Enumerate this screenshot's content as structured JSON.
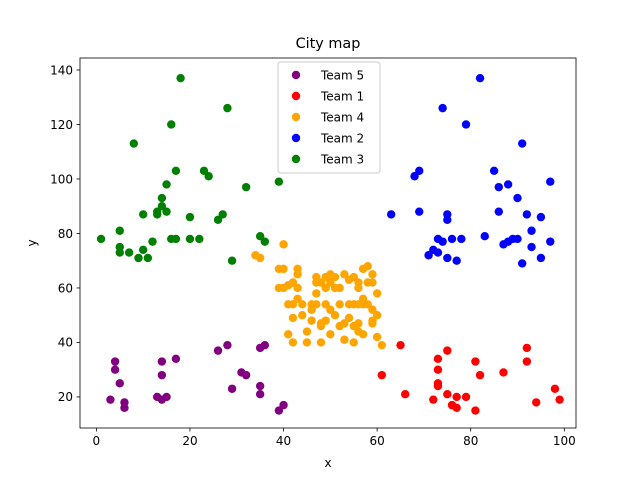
{
  "chart_data": {
    "type": "scatter",
    "title": "City map",
    "xlabel": "x",
    "ylabel": "y",
    "xlim": [
      -3.5,
      102.5
    ],
    "ylim": [
      8.6,
      144.4
    ],
    "xticks": [
      0,
      20,
      40,
      60,
      80,
      100
    ],
    "yticks": [
      20,
      40,
      60,
      80,
      100,
      120,
      140
    ],
    "grid": false,
    "legend_position": "top-center",
    "series": [
      {
        "name": "Team 5",
        "color": "#800080",
        "points": [
          [
            3,
            19
          ],
          [
            4,
            33
          ],
          [
            4,
            30
          ],
          [
            5,
            25
          ],
          [
            6,
            18
          ],
          [
            6,
            16
          ],
          [
            13,
            20
          ],
          [
            14,
            19
          ],
          [
            14,
            33
          ],
          [
            14,
            28
          ],
          [
            15,
            20
          ],
          [
            17,
            34
          ],
          [
            26,
            37
          ],
          [
            28,
            39
          ],
          [
            29,
            23
          ],
          [
            31,
            29
          ],
          [
            32,
            28
          ],
          [
            35,
            38
          ],
          [
            35,
            24
          ],
          [
            35,
            21
          ],
          [
            36,
            39
          ],
          [
            39,
            15
          ],
          [
            40,
            17
          ]
        ]
      },
      {
        "name": "Team 1",
        "color": "#ff0000",
        "points": [
          [
            61,
            28
          ],
          [
            65,
            39
          ],
          [
            66,
            21
          ],
          [
            72,
            19
          ],
          [
            73,
            34
          ],
          [
            73,
            30
          ],
          [
            73,
            25
          ],
          [
            73,
            24
          ],
          [
            75,
            37
          ],
          [
            75,
            21
          ],
          [
            76,
            17
          ],
          [
            77,
            16
          ],
          [
            77,
            20
          ],
          [
            79,
            20
          ],
          [
            81,
            33
          ],
          [
            81,
            15
          ],
          [
            82,
            28
          ],
          [
            87,
            29
          ],
          [
            92,
            38
          ],
          [
            92,
            33
          ],
          [
            94,
            18
          ],
          [
            98,
            23
          ],
          [
            99,
            19
          ]
        ]
      },
      {
        "name": "Team 4",
        "color": "#ffa500",
        "points": [
          [
            40,
            76
          ],
          [
            40,
            67
          ],
          [
            40,
            60
          ],
          [
            41,
            61
          ],
          [
            41,
            54
          ],
          [
            41,
            43
          ],
          [
            42,
            49
          ],
          [
            42,
            40
          ],
          [
            42,
            54
          ],
          [
            43,
            65
          ],
          [
            43,
            67
          ],
          [
            43,
            60
          ],
          [
            44,
            54
          ],
          [
            45,
            44
          ],
          [
            45,
            40
          ],
          [
            46,
            54
          ],
          [
            46,
            48
          ],
          [
            47,
            58
          ],
          [
            47,
            64
          ],
          [
            47,
            62
          ],
          [
            47,
            54
          ],
          [
            48,
            46
          ],
          [
            48,
            47
          ],
          [
            48,
            40
          ],
          [
            48,
            62
          ],
          [
            49,
            54
          ],
          [
            49,
            64
          ],
          [
            49,
            48
          ],
          [
            49,
            60
          ],
          [
            50,
            65
          ],
          [
            50,
            62
          ],
          [
            50,
            43
          ],
          [
            51,
            60
          ],
          [
            51,
            64
          ],
          [
            51,
            50
          ],
          [
            52,
            46
          ],
          [
            52,
            54
          ],
          [
            52,
            60
          ],
          [
            53,
            47
          ],
          [
            53,
            41
          ],
          [
            53,
            65
          ],
          [
            54,
            63
          ],
          [
            54,
            54
          ],
          [
            54,
            49
          ],
          [
            55,
            54
          ],
          [
            55,
            46
          ],
          [
            55,
            40
          ],
          [
            56,
            62
          ],
          [
            56,
            54
          ],
          [
            56,
            47
          ],
          [
            56,
            44
          ],
          [
            56,
            60
          ],
          [
            57,
            67
          ],
          [
            57,
            54
          ],
          [
            57,
            43
          ],
          [
            58,
            68
          ],
          [
            58,
            54
          ],
          [
            58,
            62
          ],
          [
            59,
            65
          ],
          [
            59,
            62
          ],
          [
            59,
            48
          ],
          [
            59,
            47
          ],
          [
            60,
            42
          ],
          [
            60,
            58
          ],
          [
            61,
            39
          ],
          [
            34,
            72
          ],
          [
            35,
            71
          ],
          [
            39,
            67
          ],
          [
            39,
            60
          ],
          [
            42,
            62
          ],
          [
            43,
            56
          ],
          [
            44,
            50
          ],
          [
            46,
            52
          ],
          [
            50,
            52
          ],
          [
            55,
            64
          ],
          [
            57,
            56
          ],
          [
            59,
            52
          ],
          [
            60,
            50
          ]
        ]
      },
      {
        "name": "Team 2",
        "color": "#0000ff",
        "points": [
          [
            63,
            87
          ],
          [
            68,
            101
          ],
          [
            69,
            103
          ],
          [
            69,
            88
          ],
          [
            71,
            72
          ],
          [
            72,
            74
          ],
          [
            73,
            73
          ],
          [
            73,
            78
          ],
          [
            74,
            126
          ],
          [
            74,
            77
          ],
          [
            75,
            87
          ],
          [
            75,
            85
          ],
          [
            75,
            71
          ],
          [
            76,
            78
          ],
          [
            77,
            70
          ],
          [
            78,
            78
          ],
          [
            79,
            120
          ],
          [
            82,
            137
          ],
          [
            83,
            79
          ],
          [
            85,
            103
          ],
          [
            86,
            97
          ],
          [
            86,
            88
          ],
          [
            87,
            76
          ],
          [
            88,
            98
          ],
          [
            88,
            77
          ],
          [
            89,
            78
          ],
          [
            90,
            93
          ],
          [
            90,
            78
          ],
          [
            91,
            113
          ],
          [
            91,
            69
          ],
          [
            92,
            87
          ],
          [
            93,
            81
          ],
          [
            93,
            75
          ],
          [
            95,
            86
          ],
          [
            95,
            71
          ],
          [
            97,
            99
          ],
          [
            97,
            77
          ]
        ]
      },
      {
        "name": "Team 3",
        "color": "#008000",
        "points": [
          [
            1,
            78
          ],
          [
            5,
            81
          ],
          [
            5,
            73
          ],
          [
            5,
            75
          ],
          [
            7,
            73
          ],
          [
            8,
            113
          ],
          [
            9,
            71
          ],
          [
            10,
            87
          ],
          [
            10,
            74
          ],
          [
            11,
            71
          ],
          [
            12,
            77
          ],
          [
            13,
            88
          ],
          [
            13,
            87
          ],
          [
            14,
            90
          ],
          [
            14,
            93
          ],
          [
            15,
            88
          ],
          [
            15,
            98
          ],
          [
            16,
            120
          ],
          [
            16,
            78
          ],
          [
            17,
            78
          ],
          [
            17,
            103
          ],
          [
            18,
            137
          ],
          [
            20,
            86
          ],
          [
            20,
            78
          ],
          [
            22,
            78
          ],
          [
            23,
            103
          ],
          [
            24,
            101
          ],
          [
            26,
            85
          ],
          [
            27,
            87
          ],
          [
            28,
            126
          ],
          [
            29,
            70
          ],
          [
            32,
            97
          ],
          [
            35,
            79
          ],
          [
            36,
            77
          ],
          [
            39,
            99
          ]
        ]
      }
    ]
  }
}
